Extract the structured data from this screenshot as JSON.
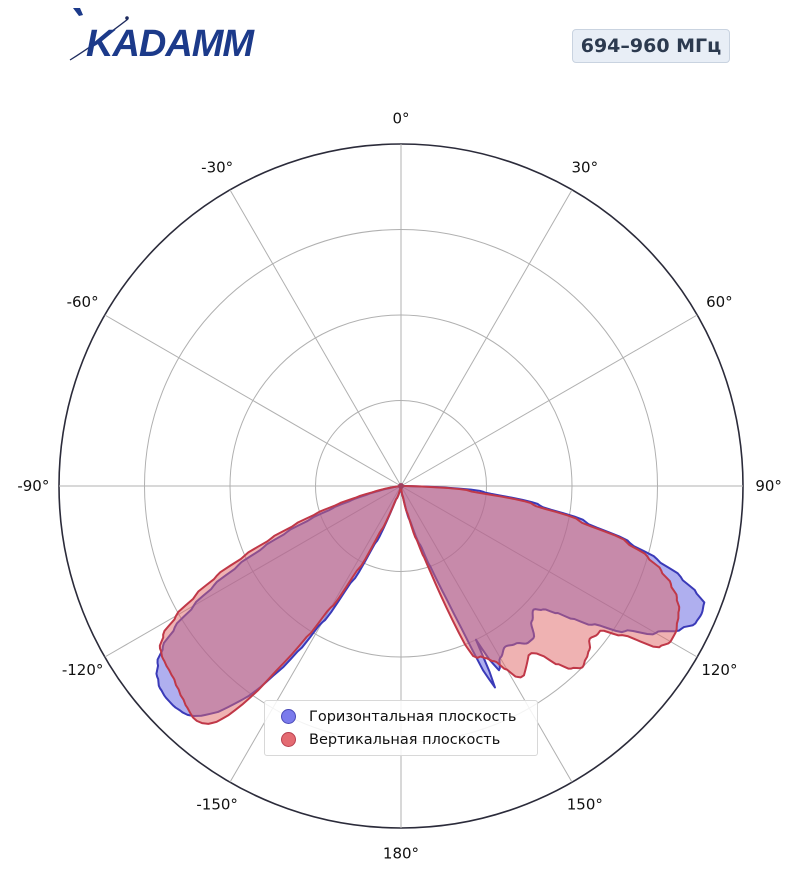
{
  "logo": {
    "text": "KADAMM"
  },
  "badge": {
    "label": "694–960 МГц"
  },
  "chart_data": {
    "type": "polar",
    "subtype": "antenna-radiation-pattern",
    "theta_zero": "top",
    "theta_direction": "clockwise",
    "angle_ticks": [
      {
        "angle": 0,
        "label": "0°"
      },
      {
        "angle": 30,
        "label": "30°"
      },
      {
        "angle": 60,
        "label": "60°"
      },
      {
        "angle": 90,
        "label": "90°"
      },
      {
        "angle": 120,
        "label": "120°"
      },
      {
        "angle": 150,
        "label": "150°"
      },
      {
        "angle": 180,
        "label": "180°"
      },
      {
        "angle": -150,
        "label": "-150°"
      },
      {
        "angle": -120,
        "label": "-120°"
      },
      {
        "angle": -90,
        "label": "-90°"
      },
      {
        "angle": -60,
        "label": "-60°"
      },
      {
        "angle": -30,
        "label": "-30°"
      }
    ],
    "radial_grid": [
      0.25,
      0.5,
      0.75,
      1.0
    ],
    "radial_max": 1.0,
    "grid": true,
    "legend_position": "lower-center",
    "series": [
      {
        "name": "Горизонтальная плоскость",
        "color": "#6060e0",
        "edge_color": "#3a3ab8",
        "theta": [
          0,
          90,
          94,
          98,
          101,
          104,
          106,
          108,
          110,
          111,
          113,
          115,
          117,
          120,
          123,
          126,
          128,
          129,
          131,
          133,
          136,
          139,
          141,
          144,
          147,
          150,
          152,
          153,
          154,
          154.5,
          155,
          156,
          157,
          158,
          159,
          160,
          162,
          166,
          170,
          180,
          190,
          200,
          204,
          207,
          210,
          212,
          213,
          213.5,
          214,
          215,
          216,
          217,
          218,
          219,
          220,
          221,
          222,
          223,
          224,
          226,
          228,
          230,
          232,
          234,
          236,
          238,
          240,
          242,
          244,
          246,
          248,
          250,
          252,
          254,
          256,
          258,
          260,
          262,
          264,
          266,
          268,
          270,
          360
        ],
        "r": [
          0,
          0,
          0.24,
          0.41,
          0.55,
          0.69,
          0.78,
          0.86,
          0.92,
          0.95,
          0.955,
          0.95,
          0.92,
          0.86,
          0.78,
          0.69,
          0.63,
          0.59,
          0.55,
          0.53,
          0.55,
          0.59,
          0.59,
          0.57,
          0.56,
          0.58,
          0.61,
          0.57,
          0.5,
          0.6,
          0.65,
          0.59,
          0.45,
          0.36,
          0.3,
          0.25,
          0.18,
          0.1,
          0.03,
          0,
          0,
          0.04,
          0.18,
          0.31,
          0.46,
          0.57,
          0.63,
          0.65,
          0.67,
          0.72,
          0.76,
          0.79,
          0.82,
          0.85,
          0.87,
          0.89,
          0.905,
          0.915,
          0.92,
          0.925,
          0.925,
          0.92,
          0.905,
          0.88,
          0.84,
          0.78,
          0.7,
          0.62,
          0.53,
          0.44,
          0.36,
          0.28,
          0.21,
          0.15,
          0.1,
          0.06,
          0.03,
          0.01,
          0,
          0,
          0,
          0,
          0
        ]
      },
      {
        "name": "Вертикальная плоскость",
        "color": "#e06666",
        "edge_color": "#c03848",
        "theta": [
          0,
          90,
          94,
          98,
          101,
          104,
          106,
          108,
          110,
          112,
          114,
          116,
          118,
          120,
          122,
          124,
          126,
          127,
          129,
          131,
          133,
          135,
          137,
          139,
          140,
          141,
          142,
          143,
          144,
          145,
          146,
          147,
          148,
          149,
          150,
          152,
          154,
          155,
          156,
          157,
          158,
          159,
          160,
          161,
          162,
          164,
          167,
          171,
          175,
          180,
          190,
          200,
          204,
          207,
          210,
          212,
          213,
          214,
          215,
          216,
          217,
          218,
          219,
          220,
          221,
          222,
          223,
          224,
          226,
          228,
          230,
          232,
          234,
          236,
          238,
          240,
          242,
          244,
          246,
          248,
          250,
          252,
          254,
          256,
          258,
          260,
          262,
          264,
          266,
          268,
          270,
          360
        ],
        "r": [
          0,
          0,
          0.2,
          0.39,
          0.53,
          0.68,
          0.75,
          0.8,
          0.84,
          0.87,
          0.89,
          0.9,
          0.91,
          0.91,
          0.89,
          0.78,
          0.72,
          0.72,
          0.71,
          0.73,
          0.74,
          0.75,
          0.73,
          0.69,
          0.65,
          0.63,
          0.62,
          0.62,
          0.63,
          0.64,
          0.65,
          0.66,
          0.66,
          0.65,
          0.62,
          0.58,
          0.56,
          0.55,
          0.55,
          0.54,
          0.5,
          0.42,
          0.34,
          0.27,
          0.22,
          0.16,
          0.08,
          0.03,
          0.01,
          0,
          0,
          0.04,
          0.14,
          0.27,
          0.41,
          0.52,
          0.59,
          0.65,
          0.73,
          0.79,
          0.84,
          0.875,
          0.895,
          0.905,
          0.91,
          0.91,
          0.905,
          0.9,
          0.89,
          0.88,
          0.87,
          0.865,
          0.86,
          0.85,
          0.82,
          0.76,
          0.68,
          0.6,
          0.5,
          0.41,
          0.33,
          0.26,
          0.19,
          0.13,
          0.08,
          0.05,
          0.02,
          0.01,
          0,
          0,
          0,
          0
        ]
      }
    ]
  }
}
